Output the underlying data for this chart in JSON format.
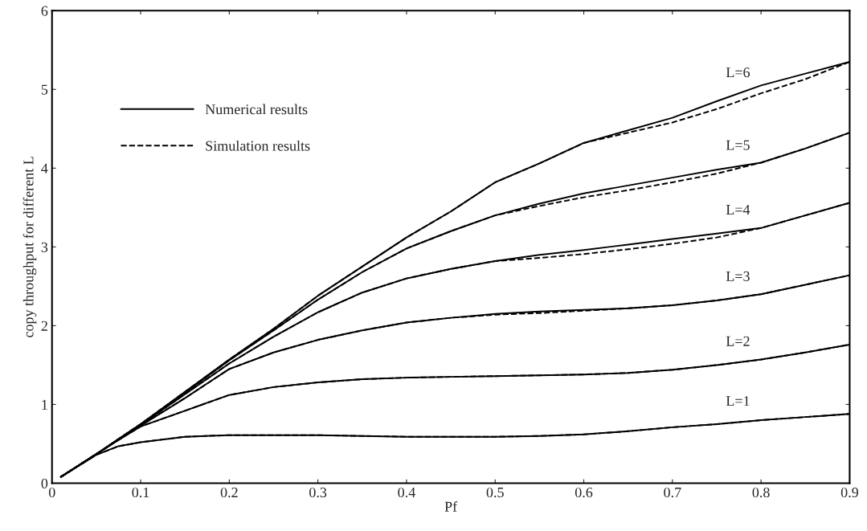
{
  "chart_data": {
    "type": "line",
    "xlabel": "Pf",
    "ylabel": "copy throughput for different L",
    "x": [
      0.01,
      0.05,
      0.075,
      0.1,
      0.15,
      0.2,
      0.25,
      0.3,
      0.35,
      0.4,
      0.45,
      0.5,
      0.55,
      0.6,
      0.65,
      0.7,
      0.75,
      0.8,
      0.85,
      0.9
    ],
    "series": [
      {
        "name": "Numerical results",
        "color": "#000000",
        "line_style": "solid",
        "values": [
          0.08,
          0.36,
          0.47,
          0.52,
          0.59,
          0.61,
          0.61,
          0.61,
          0.6,
          0.59,
          0.59,
          0.59,
          0.6,
          0.62,
          0.66,
          0.71,
          0.75,
          0.8,
          0.84,
          0.88
        ]
      },
      {
        "name": "Simulation results",
        "color": "#000000",
        "line_style": "dashed",
        "values": [
          0.08,
          0.36,
          0.47,
          0.52,
          0.59,
          0.61,
          0.61,
          0.61,
          0.6,
          0.59,
          0.59,
          0.59,
          0.6,
          0.62,
          0.66,
          0.71,
          0.75,
          0.8,
          0.84,
          0.88
        ]
      },
      {
        "color": "#000000",
        "line_style": "solid",
        "values": [
          0.08,
          0.37,
          0.55,
          0.72,
          0.92,
          1.12,
          1.22,
          1.28,
          1.32,
          1.34,
          1.35,
          1.36,
          1.37,
          1.38,
          1.4,
          1.44,
          1.5,
          1.57,
          1.66,
          1.76
        ]
      },
      {
        "color": "#000000",
        "line_style": "dashed",
        "values": [
          0.08,
          0.37,
          0.55,
          0.72,
          0.92,
          1.12,
          1.22,
          1.28,
          1.32,
          1.34,
          1.35,
          1.36,
          1.37,
          1.38,
          1.4,
          1.44,
          1.5,
          1.57,
          1.66,
          1.76
        ]
      },
      {
        "color": "#000000",
        "line_style": "solid",
        "values": [
          0.08,
          0.37,
          0.55,
          0.73,
          1.08,
          1.45,
          1.66,
          1.82,
          1.94,
          2.04,
          2.1,
          2.15,
          2.18,
          2.2,
          2.22,
          2.26,
          2.32,
          2.4,
          2.52,
          2.64
        ]
      },
      {
        "color": "#000000",
        "line_style": "dashed",
        "values": [
          0.08,
          0.37,
          0.55,
          0.73,
          1.08,
          1.45,
          1.66,
          1.82,
          1.94,
          2.04,
          2.1,
          2.14,
          2.16,
          2.19,
          2.22,
          2.26,
          2.32,
          2.4,
          2.52,
          2.64
        ]
      },
      {
        "color": "#000000",
        "line_style": "solid",
        "values": [
          0.08,
          0.37,
          0.56,
          0.74,
          1.13,
          1.52,
          1.86,
          2.17,
          2.42,
          2.6,
          2.72,
          2.82,
          2.9,
          2.96,
          3.03,
          3.1,
          3.17,
          3.24,
          3.4,
          3.56
        ]
      },
      {
        "color": "#000000",
        "line_style": "dashed",
        "values": [
          0.08,
          0.37,
          0.56,
          0.74,
          1.13,
          1.52,
          1.86,
          2.17,
          2.42,
          2.6,
          2.72,
          2.82,
          2.86,
          2.91,
          2.97,
          3.04,
          3.12,
          3.24,
          3.4,
          3.56
        ]
      },
      {
        "color": "#000000",
        "line_style": "solid",
        "values": [
          0.08,
          0.37,
          0.56,
          0.75,
          1.15,
          1.56,
          1.94,
          2.33,
          2.68,
          2.98,
          3.2,
          3.4,
          3.55,
          3.68,
          3.78,
          3.88,
          3.98,
          4.07,
          4.25,
          4.45
        ]
      },
      {
        "color": "#000000",
        "line_style": "dashed",
        "values": [
          0.08,
          0.37,
          0.56,
          0.75,
          1.15,
          1.56,
          1.94,
          2.33,
          2.68,
          2.98,
          3.2,
          3.4,
          3.52,
          3.63,
          3.72,
          3.82,
          3.93,
          4.07,
          4.25,
          4.45
        ]
      },
      {
        "color": "#000000",
        "line_style": "solid",
        "values": [
          0.08,
          0.37,
          0.56,
          0.75,
          1.16,
          1.57,
          1.96,
          2.38,
          2.75,
          3.12,
          3.45,
          3.82,
          4.06,
          4.32,
          4.48,
          4.64,
          4.85,
          5.05,
          5.2,
          5.35
        ]
      },
      {
        "color": "#000000",
        "line_style": "dashed",
        "values": [
          0.08,
          0.37,
          0.56,
          0.75,
          1.16,
          1.57,
          1.96,
          2.38,
          2.75,
          3.12,
          3.45,
          3.82,
          4.06,
          4.32,
          4.45,
          4.58,
          4.75,
          4.95,
          5.13,
          5.35
        ]
      }
    ],
    "annotations": [
      "L=6",
      "L=5",
      "L=4",
      "L=3",
      "L=2",
      "L=1"
    ],
    "xlim": [
      0,
      0.9
    ],
    "ylim": [
      0,
      6
    ],
    "xticks": [
      0,
      0.1,
      0.2,
      0.3,
      0.4,
      0.5,
      0.6,
      0.7,
      0.8,
      0.9
    ],
    "yticks": [
      0,
      1,
      2,
      3,
      4,
      5,
      6
    ],
    "grid": false,
    "legend": "top left"
  }
}
